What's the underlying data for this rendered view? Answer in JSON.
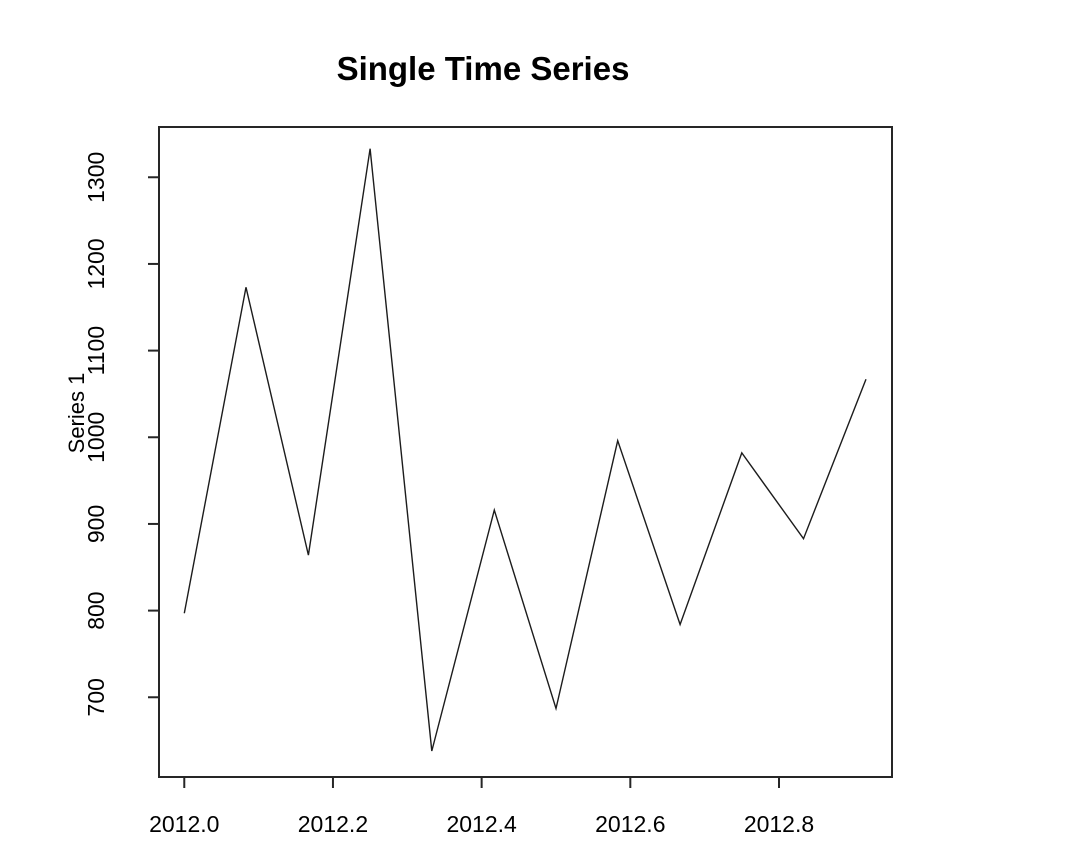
{
  "chart_data": {
    "type": "line",
    "title": "Single Time Series",
    "xlabel": "",
    "ylabel": "Series 1",
    "x": [
      2012.0,
      2012.083,
      2012.167,
      2012.25,
      2012.333,
      2012.417,
      2012.5,
      2012.583,
      2012.667,
      2012.75,
      2012.833,
      2012.917
    ],
    "series": [
      {
        "name": "Series 1",
        "values": [
          797,
          1173,
          864,
          1333,
          638,
          916,
          687,
          996,
          784,
          982,
          883,
          1067
        ]
      }
    ],
    "xlim": [
      2011.966,
      2012.952
    ],
    "ylim": [
      608,
      1358
    ],
    "x_ticks": [
      2012.0,
      2012.2,
      2012.4,
      2012.6,
      2012.8
    ],
    "x_tick_labels": [
      "2012.0",
      "2012.2",
      "2012.4",
      "2012.6",
      "2012.8"
    ],
    "y_ticks": [
      700,
      800,
      900,
      1000,
      1100,
      1200,
      1300
    ],
    "y_tick_labels": [
      "700",
      "800",
      "900",
      "1000",
      "1100",
      "1200",
      "1300"
    ],
    "grid": false,
    "legend": "none",
    "colors": {
      "line": "#1c1c1c",
      "axis": "#262626",
      "text": "#000000",
      "background": "#ffffff"
    }
  }
}
